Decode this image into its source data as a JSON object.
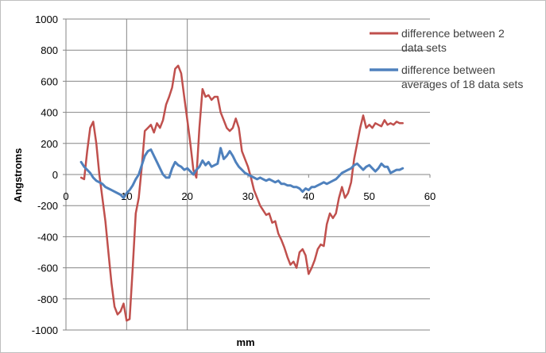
{
  "chart_data": {
    "type": "line",
    "title": "",
    "xlabel": "mm",
    "ylabel": "Angstroms",
    "xlim": [
      0,
      60
    ],
    "ylim": [
      -1000,
      1000
    ],
    "x_ticks": [
      0,
      10,
      20,
      30,
      40,
      50,
      60
    ],
    "y_ticks": [
      -1000,
      -800,
      -600,
      -400,
      -200,
      0,
      200,
      400,
      600,
      800,
      1000
    ],
    "x_tick_labels": [
      "0",
      "10",
      "20",
      "30",
      "40",
      "50",
      "60"
    ],
    "y_tick_labels": [
      "-1000",
      "-800",
      "-600",
      "-400",
      "-200",
      "0",
      "200",
      "400",
      "600",
      "800",
      "1000"
    ],
    "grid": "horizontal",
    "vertical_gridlines_at": [
      10,
      20
    ],
    "legend_position": "right",
    "series": [
      {
        "name": "difference between 2 data sets",
        "color": "#c0504d",
        "x": [
          2.5,
          3.0,
          3.5,
          4.0,
          4.5,
          5.0,
          5.5,
          6.0,
          6.5,
          7.0,
          7.5,
          8.0,
          8.5,
          9.0,
          9.5,
          10.0,
          10.5,
          11.0,
          11.5,
          12.0,
          12.5,
          13.0,
          13.5,
          14.0,
          14.5,
          15.0,
          15.5,
          16.0,
          16.5,
          17.0,
          17.5,
          18.0,
          18.5,
          19.0,
          19.5,
          20.0,
          20.5,
          21.0,
          21.5,
          22.0,
          22.5,
          23.0,
          23.5,
          24.0,
          24.5,
          25.0,
          25.5,
          26.0,
          26.5,
          27.0,
          27.5,
          28.0,
          28.5,
          29.0,
          29.5,
          30.0,
          30.5,
          31.0,
          31.5,
          32.0,
          32.5,
          33.0,
          33.5,
          34.0,
          34.5,
          35.0,
          35.5,
          36.0,
          36.5,
          37.0,
          37.5,
          38.0,
          38.5,
          39.0,
          39.5,
          40.0,
          40.5,
          41.0,
          41.5,
          42.0,
          42.5,
          43.0,
          43.5,
          44.0,
          44.5,
          45.0,
          45.5,
          46.0,
          46.5,
          47.0,
          47.5,
          48.0,
          48.5,
          49.0,
          49.5,
          50.0,
          50.5,
          51.0,
          51.5,
          52.0,
          52.5,
          53.0,
          53.5,
          54.0,
          54.5,
          55.0,
          55.5
        ],
        "values": [
          -20,
          -30,
          150,
          300,
          340,
          200,
          0,
          -150,
          -300,
          -500,
          -700,
          -850,
          -900,
          -880,
          -830,
          -940,
          -930,
          -600,
          -250,
          -150,
          50,
          280,
          300,
          320,
          270,
          330,
          300,
          350,
          450,
          500,
          560,
          680,
          700,
          650,
          500,
          350,
          200,
          30,
          -20,
          300,
          550,
          500,
          510,
          480,
          500,
          500,
          400,
          350,
          300,
          280,
          300,
          360,
          300,
          150,
          100,
          50,
          -20,
          -100,
          -150,
          -200,
          -230,
          -260,
          -250,
          -310,
          -300,
          -380,
          -420,
          -470,
          -530,
          -580,
          -560,
          -600,
          -500,
          -480,
          -520,
          -640,
          -600,
          -550,
          -480,
          -450,
          -460,
          -320,
          -250,
          -280,
          -250,
          -150,
          -80,
          -150,
          -120,
          -50,
          100,
          200,
          300,
          380,
          300,
          320,
          300,
          330,
          320,
          310,
          350,
          320,
          330,
          320,
          340,
          330,
          330
        ],
        "line_width": 2.5
      },
      {
        "name": "difference between averages of 18 data sets",
        "color": "#4f81bd",
        "x": [
          2.5,
          3.0,
          3.5,
          4.0,
          4.5,
          5.0,
          5.5,
          6.0,
          6.5,
          7.0,
          7.5,
          8.0,
          8.5,
          9.0,
          9.5,
          10.0,
          10.5,
          11.0,
          11.5,
          12.0,
          12.5,
          13.0,
          13.5,
          14.0,
          14.5,
          15.0,
          15.5,
          16.0,
          16.5,
          17.0,
          17.5,
          18.0,
          18.5,
          19.0,
          19.5,
          20.0,
          20.5,
          21.0,
          21.5,
          22.0,
          22.5,
          23.0,
          23.5,
          24.0,
          24.5,
          25.0,
          25.5,
          26.0,
          26.5,
          27.0,
          27.5,
          28.0,
          28.5,
          29.0,
          29.5,
          30.0,
          30.5,
          31.0,
          31.5,
          32.0,
          32.5,
          33.0,
          33.5,
          34.0,
          34.5,
          35.0,
          35.5,
          36.0,
          36.5,
          37.0,
          37.5,
          38.0,
          38.5,
          39.0,
          39.5,
          40.0,
          40.5,
          41.0,
          41.5,
          42.0,
          42.5,
          43.0,
          43.5,
          44.0,
          44.5,
          45.0,
          45.5,
          46.0,
          46.5,
          47.0,
          47.5,
          48.0,
          48.5,
          49.0,
          49.5,
          50.0,
          50.5,
          51.0,
          51.5,
          52.0,
          52.5,
          53.0,
          53.5,
          54.0,
          54.5,
          55.0,
          55.5
        ],
        "values": [
          80,
          50,
          30,
          10,
          -20,
          -40,
          -50,
          -60,
          -80,
          -90,
          -100,
          -110,
          -120,
          -130,
          -150,
          -120,
          -100,
          -70,
          -30,
          0,
          60,
          120,
          150,
          160,
          120,
          80,
          40,
          0,
          -20,
          -20,
          40,
          80,
          60,
          50,
          30,
          40,
          20,
          0,
          30,
          50,
          90,
          60,
          80,
          50,
          60,
          70,
          170,
          100,
          120,
          150,
          120,
          80,
          50,
          30,
          10,
          0,
          -10,
          -20,
          -30,
          -20,
          -30,
          -40,
          -30,
          -40,
          -50,
          -40,
          -60,
          -60,
          -70,
          -70,
          -80,
          -80,
          -90,
          -110,
          -90,
          -100,
          -80,
          -80,
          -70,
          -60,
          -50,
          -60,
          -50,
          -40,
          -30,
          -10,
          10,
          20,
          30,
          40,
          60,
          70,
          50,
          30,
          50,
          60,
          40,
          20,
          40,
          70,
          50,
          50,
          10,
          20,
          30,
          30,
          40
        ],
        "line_width": 3
      }
    ]
  }
}
